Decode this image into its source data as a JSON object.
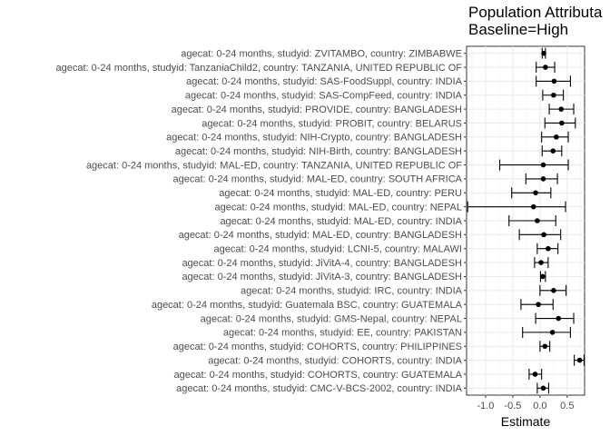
{
  "chart_data": {
    "type": "forest",
    "title": "Population Attributa",
    "subtitle": "Baseline=High",
    "xlabel": "Estimate",
    "ylabel": "",
    "xlim": [
      -1.35,
      0.82
    ],
    "xticks": [
      -1.0,
      -0.5,
      0.0,
      0.5
    ],
    "xtick_labels": [
      "-1.0",
      "-0.5",
      "0.0",
      "0.5"
    ],
    "grid": true,
    "rows": [
      {
        "label": "agecat: 0-24 months, studyid: ZVITAMBO, country: ZIMBABWE",
        "estimate": 0.07,
        "lower": 0.04,
        "upper": 0.1
      },
      {
        "label": "agecat: 0-24 months, studyid: TanzaniaChild2, country: TANZANIA, UNITED REPUBLIC OF",
        "estimate": 0.1,
        "lower": -0.07,
        "upper": 0.27
      },
      {
        "label": "agecat: 0-24 months, studyid: SAS-FoodSuppl, country: INDIA",
        "estimate": 0.26,
        "lower": -0.07,
        "upper": 0.56
      },
      {
        "label": "agecat: 0-24 months, studyid: SAS-CompFeed, country: INDIA",
        "estimate": 0.25,
        "lower": 0.05,
        "upper": 0.43
      },
      {
        "label": "agecat: 0-24 months, studyid: PROVIDE, country: BANGLADESH",
        "estimate": 0.39,
        "lower": 0.17,
        "upper": 0.62
      },
      {
        "label": "agecat: 0-24 months, studyid: PROBIT, country: BELARUS",
        "estimate": 0.4,
        "lower": 0.09,
        "upper": 0.65
      },
      {
        "label": "agecat: 0-24 months, studyid: NIH-Crypto, country: BANGLADESH",
        "estimate": 0.3,
        "lower": 0.03,
        "upper": 0.52
      },
      {
        "label": "agecat: 0-24 months, studyid: NIH-Birth, country: BANGLADESH",
        "estimate": 0.24,
        "lower": 0.04,
        "upper": 0.4
      },
      {
        "label": "agecat: 0-24 months, studyid: MAL-ED, country: TANZANIA, UNITED REPUBLIC OF",
        "estimate": 0.06,
        "lower": -0.74,
        "upper": 0.52
      },
      {
        "label": "agecat: 0-24 months, studyid: MAL-ED, country: SOUTH AFRICA",
        "estimate": 0.06,
        "lower": -0.26,
        "upper": 0.32
      },
      {
        "label": "agecat: 0-24 months, studyid: MAL-ED, country: PERU",
        "estimate": -0.08,
        "lower": -0.52,
        "upper": 0.2
      },
      {
        "label": "agecat: 0-24 months, studyid: MAL-ED, country: NEPAL",
        "estimate": -0.12,
        "lower": -1.33,
        "upper": 0.47
      },
      {
        "label": "agecat: 0-24 months, studyid: MAL-ED, country: INDIA",
        "estimate": -0.05,
        "lower": -0.57,
        "upper": 0.29
      },
      {
        "label": "agecat: 0-24 months, studyid: MAL-ED, country: BANGLADESH",
        "estimate": 0.07,
        "lower": -0.38,
        "upper": 0.38
      },
      {
        "label": "agecat: 0-24 months, studyid: LCNI-5, country: MALAWI",
        "estimate": 0.15,
        "lower": -0.05,
        "upper": 0.33
      },
      {
        "label": "agecat: 0-24 months, studyid: JiVitA-4, country: BANGLADESH",
        "estimate": 0.02,
        "lower": -0.1,
        "upper": 0.15
      },
      {
        "label": "agecat: 0-24 months, studyid: JiVitA-3, country: BANGLADESH",
        "estimate": 0.05,
        "lower": 0.01,
        "upper": 0.1
      },
      {
        "label": "agecat: 0-24 months, studyid: IRC, country: INDIA",
        "estimate": 0.25,
        "lower": 0.0,
        "upper": 0.48
      },
      {
        "label": "agecat: 0-24 months, studyid: Guatemala BSC, country: GUATEMALA",
        "estimate": -0.03,
        "lower": -0.35,
        "upper": 0.24
      },
      {
        "label": "agecat: 0-24 months, studyid: GMS-Nepal, country: NEPAL",
        "estimate": 0.34,
        "lower": -0.08,
        "upper": 0.62
      },
      {
        "label": "agecat: 0-24 months, studyid: EE, country: PAKISTAN",
        "estimate": 0.23,
        "lower": -0.32,
        "upper": 0.56
      },
      {
        "label": "agecat: 0-24 months, studyid: COHORTS, country: PHILIPPINES",
        "estimate": 0.09,
        "lower": 0.0,
        "upper": 0.18
      },
      {
        "label": "agecat: 0-24 months, studyid: COHORTS, country: INDIA",
        "estimate": 0.73,
        "lower": 0.63,
        "upper": 0.81
      },
      {
        "label": "agecat: 0-24 months, studyid: COHORTS, country: GUATEMALA",
        "estimate": -0.09,
        "lower": -0.2,
        "upper": 0.03
      },
      {
        "label": "agecat: 0-24 months, studyid: CMC-V-BCS-2002, country: INDIA",
        "estimate": 0.06,
        "lower": -0.05,
        "upper": 0.16
      }
    ]
  }
}
